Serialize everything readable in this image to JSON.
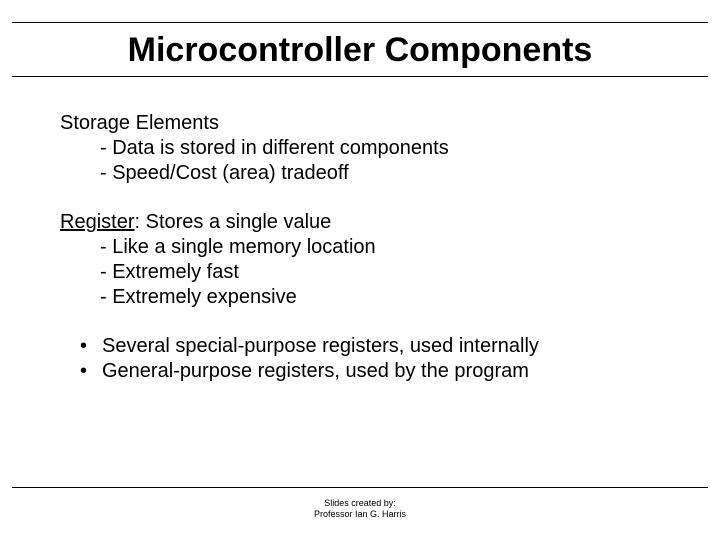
{
  "title": "Microcontroller Components",
  "section1": {
    "heading": "Storage Elements",
    "items": [
      "- Data is stored in different components",
      "- Speed/Cost (area) tradeoff"
    ]
  },
  "section2": {
    "heading_underlined": "Register",
    "heading_rest": ": Stores a single value",
    "items": [
      "- Like a single memory location",
      "- Extremely fast",
      "- Extremely expensive"
    ]
  },
  "bullets": {
    "dot": "•",
    "items": [
      "Several special-purpose registers, used internally",
      "General-purpose registers, used by the program"
    ]
  },
  "footer": {
    "line1": "Slides created by:",
    "line2": "Professor Ian G. Harris"
  }
}
